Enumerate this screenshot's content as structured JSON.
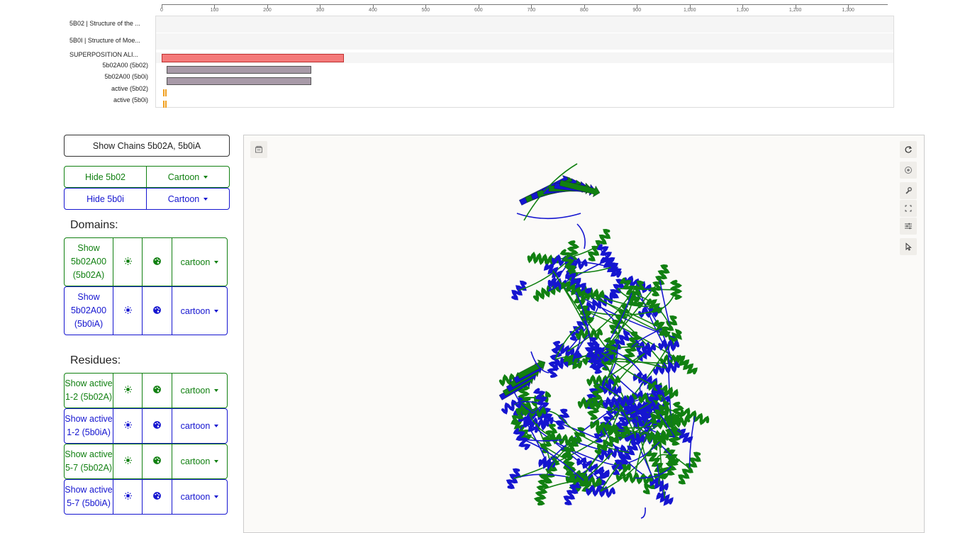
{
  "axis": {
    "ticks": [
      "0",
      "100",
      "200",
      "300",
      "400",
      "500",
      "600",
      "700",
      "800",
      "900",
      "1,000",
      "1,100",
      "1,200",
      "1,300"
    ]
  },
  "tracks": {
    "structure_1": "5B02 | Structure of the ...",
    "structure_2": "5B0I | Structure of Moe...",
    "superposition": "SUPERPOSITION ALI...",
    "domain_1": "5b02A00 (5b02)",
    "domain_2": "5b02A00 (5b0i)",
    "active_1": "active (5b02)",
    "active_2": "active (5b0i)"
  },
  "colors": {
    "structure_a": "#118011",
    "structure_b": "#1515d0",
    "superposition_bar": "#f47a7a",
    "domain_bar": "#a89aa8",
    "active_site": "#f0a020"
  },
  "controls": {
    "show_chains": "Show Chains 5b02A, 5b0iA",
    "hide_5b02": "Hide 5b02",
    "hide_5b0i": "Hide 5b0i",
    "style_5b02": "Cartoon",
    "style_5b0i": "Cartoon",
    "domains_title": "Domains:",
    "domain_rows": [
      {
        "label": "Show 5b02A00 (5b02A)",
        "style": "cartoon",
        "color": "green"
      },
      {
        "label": "Show 5b02A00 (5b0iA)",
        "style": "cartoon",
        "color": "blue"
      }
    ],
    "residues_title": "Residues:",
    "residue_rows": [
      {
        "label": "Show active 1-2 (5b02A)",
        "style": "cartoon",
        "color": "green"
      },
      {
        "label": "Show active 1-2 (5b0iA)",
        "style": "cartoon",
        "color": "blue"
      },
      {
        "label": "Show active 5-7 (5b02A)",
        "style": "cartoon",
        "color": "green"
      },
      {
        "label": "Show active 5-7 (5b0iA)",
        "style": "cartoon",
        "color": "blue"
      }
    ]
  },
  "viewer": {
    "toolbar_left": [
      "screenshot-icon"
    ],
    "toolbar_right": [
      "reset-icon",
      "spin-icon",
      "wrench-icon",
      "expand-icon",
      "settings-icon",
      "select-cursor-icon"
    ]
  }
}
